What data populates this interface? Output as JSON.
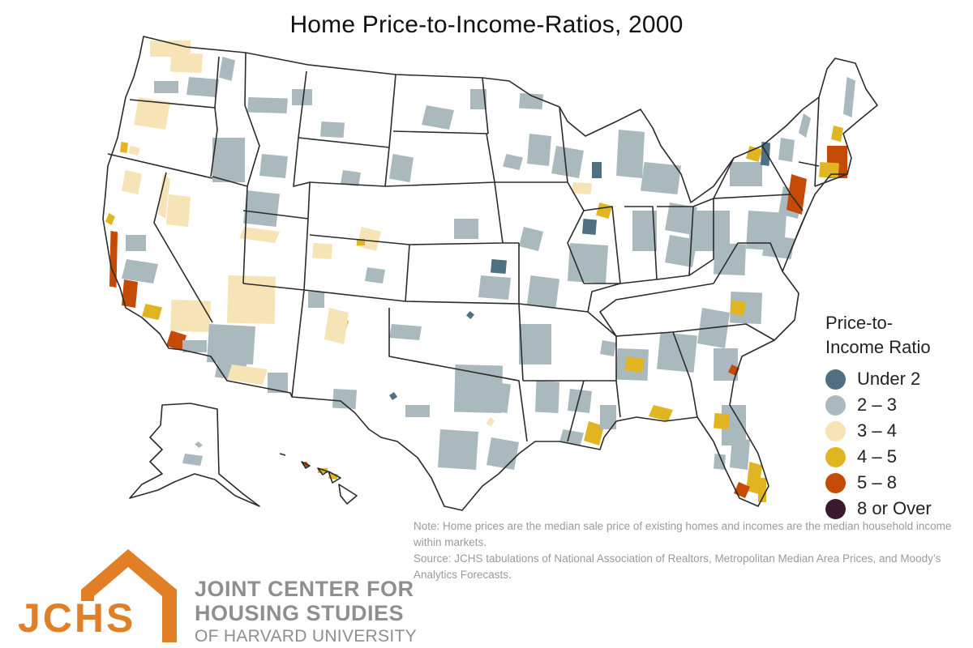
{
  "title": "Home Price-to-Income-Ratios, 2000",
  "legend": {
    "title_line1": "Price-to-",
    "title_line2": "Income Ratio",
    "items": [
      {
        "label": "Under 2",
        "color": "#4f6f82"
      },
      {
        "label": "2 – 3",
        "color": "#a9b9be"
      },
      {
        "label": "3 – 4",
        "color": "#f7e4b6"
      },
      {
        "label": "4 – 5",
        "color": "#e0b521"
      },
      {
        "label": "5 – 8",
        "color": "#c54a06"
      },
      {
        "label": "8 or Over",
        "color": "#3a1a2c"
      }
    ]
  },
  "note": "Note: Home prices are the median sale price of existing homes and incomes are the median household income within markets.",
  "source": "Source: JCHS tabulations of National Association of Realtors, Metropolitan Median Area Prices, and Moody’s Analytics Forecasts.",
  "logo": {
    "mark": "JCHS",
    "org_line1": "JOINT CENTER FOR",
    "org_line2": "HOUSING STUDIES",
    "org_line3": "OF HARVARD UNIVERSITY",
    "color": "#e17f27"
  }
}
